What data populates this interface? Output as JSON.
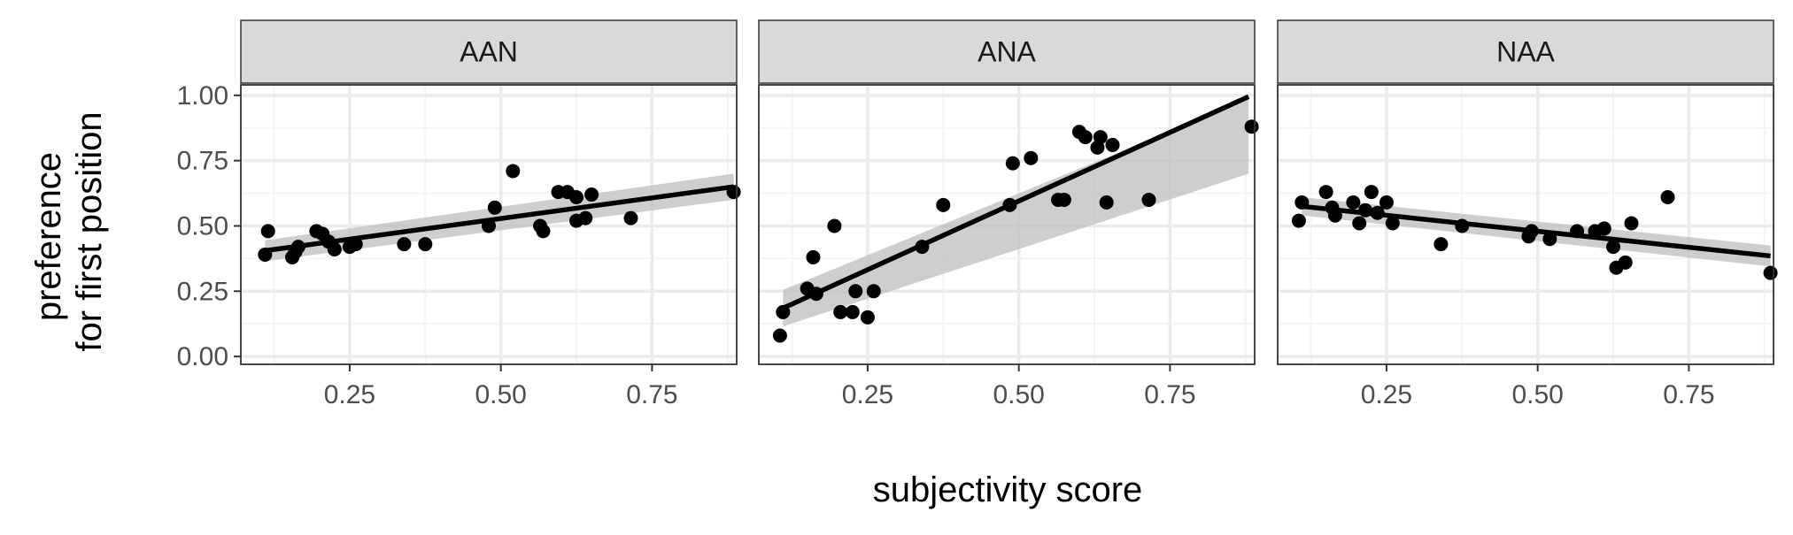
{
  "chart_data": {
    "type": "scatter",
    "xlabel": "subjectivity score",
    "ylabel_lines": [
      "preference",
      "for first position"
    ],
    "xlim": [
      0.07,
      0.89
    ],
    "ylim": [
      -0.03,
      1.04
    ],
    "x_ticks": [
      0.25,
      0.5,
      0.75
    ],
    "x_tick_labels": [
      "0.25",
      "0.50",
      "0.75"
    ],
    "y_ticks": [
      0,
      0.25,
      0.5,
      0.75,
      1.0
    ],
    "y_tick_labels": [
      "0.00",
      "0.25",
      "0.50",
      "0.75",
      "1.00"
    ],
    "grid": true,
    "legend": "none",
    "colors": {
      "points": "#000000",
      "fit_line": "#000000",
      "ci_band": "#bdbdbd",
      "strip_fill": "#d9d9d9",
      "grid_major": "#ebebeb",
      "grid_minor": "#f4f4f4",
      "panel_border": "#333333"
    },
    "panels": [
      {
        "label": "AAN",
        "points": [
          [
            0.11,
            0.39
          ],
          [
            0.115,
            0.48
          ],
          [
            0.155,
            0.38
          ],
          [
            0.165,
            0.42
          ],
          [
            0.16,
            0.4
          ],
          [
            0.195,
            0.48
          ],
          [
            0.205,
            0.47
          ],
          [
            0.215,
            0.44
          ],
          [
            0.225,
            0.41
          ],
          [
            0.25,
            0.42
          ],
          [
            0.26,
            0.43
          ],
          [
            0.34,
            0.43
          ],
          [
            0.375,
            0.43
          ],
          [
            0.48,
            0.5
          ],
          [
            0.49,
            0.57
          ],
          [
            0.52,
            0.71
          ],
          [
            0.565,
            0.5
          ],
          [
            0.57,
            0.48
          ],
          [
            0.595,
            0.63
          ],
          [
            0.61,
            0.63
          ],
          [
            0.625,
            0.52
          ],
          [
            0.625,
            0.61
          ],
          [
            0.64,
            0.53
          ],
          [
            0.65,
            0.62
          ],
          [
            0.715,
            0.53
          ],
          [
            0.885,
            0.63
          ]
        ],
        "fit": {
          "x0": 0.11,
          "y0": 0.405,
          "x1": 0.885,
          "y1": 0.65
        },
        "ci": {
          "lo0": 0.365,
          "hi0": 0.445,
          "lo1": 0.6,
          "hi1": 0.7
        }
      },
      {
        "label": "ANA",
        "points": [
          [
            0.105,
            0.08
          ],
          [
            0.11,
            0.17
          ],
          [
            0.15,
            0.26
          ],
          [
            0.16,
            0.38
          ],
          [
            0.165,
            0.24
          ],
          [
            0.195,
            0.5
          ],
          [
            0.205,
            0.17
          ],
          [
            0.225,
            0.17
          ],
          [
            0.23,
            0.25
          ],
          [
            0.25,
            0.15
          ],
          [
            0.26,
            0.25
          ],
          [
            0.34,
            0.42
          ],
          [
            0.375,
            0.58
          ],
          [
            0.485,
            0.58
          ],
          [
            0.49,
            0.74
          ],
          [
            0.52,
            0.76
          ],
          [
            0.565,
            0.6
          ],
          [
            0.575,
            0.6
          ],
          [
            0.6,
            0.86
          ],
          [
            0.61,
            0.84
          ],
          [
            0.63,
            0.8
          ],
          [
            0.635,
            0.84
          ],
          [
            0.645,
            0.59
          ],
          [
            0.655,
            0.81
          ],
          [
            0.715,
            0.6
          ],
          [
            0.885,
            0.88
          ]
        ],
        "fit": {
          "x0": 0.11,
          "y0": 0.185,
          "x1": 0.88,
          "y1": 0.995
        },
        "ci": {
          "lo0": 0.115,
          "hi0": 0.255,
          "lo1": 0.7,
          "hi1": 0.985
        }
      },
      {
        "label": "NAA",
        "points": [
          [
            0.105,
            0.52
          ],
          [
            0.11,
            0.59
          ],
          [
            0.15,
            0.63
          ],
          [
            0.16,
            0.57
          ],
          [
            0.165,
            0.54
          ],
          [
            0.195,
            0.59
          ],
          [
            0.205,
            0.51
          ],
          [
            0.215,
            0.56
          ],
          [
            0.225,
            0.63
          ],
          [
            0.235,
            0.55
          ],
          [
            0.25,
            0.59
          ],
          [
            0.26,
            0.51
          ],
          [
            0.34,
            0.43
          ],
          [
            0.375,
            0.5
          ],
          [
            0.485,
            0.46
          ],
          [
            0.49,
            0.48
          ],
          [
            0.52,
            0.45
          ],
          [
            0.565,
            0.48
          ],
          [
            0.595,
            0.48
          ],
          [
            0.61,
            0.49
          ],
          [
            0.625,
            0.42
          ],
          [
            0.63,
            0.34
          ],
          [
            0.645,
            0.36
          ],
          [
            0.655,
            0.51
          ],
          [
            0.715,
            0.61
          ],
          [
            0.885,
            0.32
          ]
        ],
        "fit": {
          "x0": 0.11,
          "y0": 0.575,
          "x1": 0.885,
          "y1": 0.385
        },
        "ci": {
          "lo0": 0.54,
          "hi0": 0.61,
          "lo1": 0.345,
          "hi1": 0.425
        }
      }
    ]
  }
}
